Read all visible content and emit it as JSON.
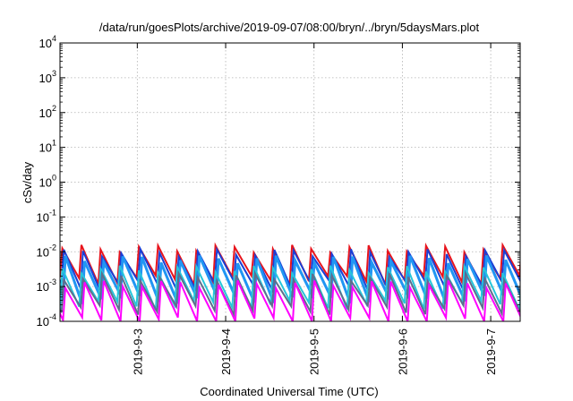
{
  "chart_data": {
    "type": "line",
    "title": "/data/run/goesPlots/archive/2019-09-07/08:00/bryn/../bryn/5daysMars.plot",
    "xlabel": "Coordinated Universal Time (UTC)",
    "ylabel": "cSv/day",
    "y_scale": "log",
    "ylim": [
      0.0001,
      10000
    ],
    "y_ticks": [
      {
        "base": "10",
        "exp": "-4"
      },
      {
        "base": "10",
        "exp": "-3"
      },
      {
        "base": "10",
        "exp": "-2"
      },
      {
        "base": "10",
        "exp": "-1"
      },
      {
        "base": "10",
        "exp": "0"
      },
      {
        "base": "10",
        "exp": "1"
      },
      {
        "base": "10",
        "exp": "2"
      },
      {
        "base": "10",
        "exp": "3"
      },
      {
        "base": "10",
        "exp": "4"
      }
    ],
    "xlim": [
      "2019-09-02T03:00",
      "2019-09-07T08:00"
    ],
    "x_ticks": [
      "2019-9-3",
      "2019-9-4",
      "2019-9-5",
      "2019-9-6",
      "2019-9-7"
    ],
    "grid": true,
    "series": [
      {
        "color": "#e8141c",
        "peak": 0.0125,
        "trough": 0.0016,
        "width": 2
      },
      {
        "color": "#1a3fd6",
        "peak": 0.0095,
        "trough": 0.0011,
        "width": 2
      },
      {
        "color": "#2196f3",
        "peak": 0.0062,
        "trough": 0.00045,
        "width": 3
      },
      {
        "color": "#26c6da",
        "peak": 0.0032,
        "trough": 0.0003,
        "width": 2
      },
      {
        "color": "#5e6e8c",
        "peak": 0.0019,
        "trough": 0.00022,
        "width": 2
      },
      {
        "color": "#ff00ff",
        "peak": 0.0012,
        "trough": 0.0001,
        "width": 2
      }
    ],
    "period_hours": 5.2
  }
}
